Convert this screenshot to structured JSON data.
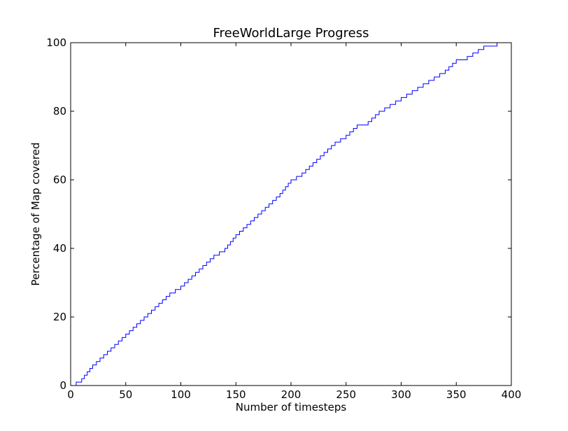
{
  "chart_data": {
    "type": "line",
    "title": "FreeWorldLarge Progress",
    "xlabel": "Number of timesteps",
    "ylabel": "Percentage of Map covered",
    "xlim": [
      0,
      400
    ],
    "ylim": [
      0,
      100
    ],
    "xticks": [
      0,
      50,
      100,
      150,
      200,
      250,
      300,
      350,
      400
    ],
    "yticks": [
      0,
      20,
      40,
      60,
      80,
      100
    ],
    "grid": false,
    "legend": "none",
    "line_style": "steps",
    "line_color": "#0000ff",
    "series": [
      {
        "x": [
          0,
          10,
          20,
          30,
          40,
          50,
          60,
          70,
          80,
          90,
          100,
          110,
          120,
          130,
          140,
          150,
          160,
          170,
          180,
          190,
          200,
          210,
          220,
          230,
          240,
          250,
          260,
          270,
          280,
          290,
          300,
          310,
          320,
          330,
          340,
          350,
          360,
          370,
          375,
          380,
          386,
          387
        ],
        "y": [
          0,
          2,
          6,
          9,
          12,
          15,
          18,
          21,
          24,
          27,
          29,
          32,
          35,
          38,
          40,
          44,
          47,
          50,
          53,
          56,
          60,
          62,
          65,
          68,
          71,
          73,
          76,
          77,
          80,
          82,
          84,
          86,
          88,
          90,
          92,
          95,
          96,
          98,
          99,
          99,
          99,
          100
        ]
      }
    ]
  }
}
